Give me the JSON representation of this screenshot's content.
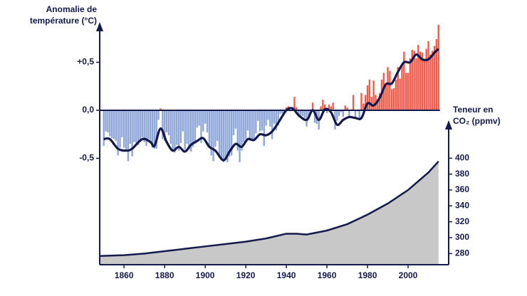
{
  "chart_data": {
    "type": "bar",
    "ylabel": [
      "Anomalie de",
      "température (°C)"
    ],
    "y2label": [
      "Teneur en",
      "CO₂ (ppmv)"
    ],
    "x": [
      1850,
      1851,
      1852,
      1853,
      1854,
      1855,
      1856,
      1857,
      1858,
      1859,
      1860,
      1861,
      1862,
      1863,
      1864,
      1865,
      1866,
      1867,
      1868,
      1869,
      1870,
      1871,
      1872,
      1873,
      1874,
      1875,
      1876,
      1877,
      1878,
      1879,
      1880,
      1881,
      1882,
      1883,
      1884,
      1885,
      1886,
      1887,
      1888,
      1889,
      1890,
      1891,
      1892,
      1893,
      1894,
      1895,
      1896,
      1897,
      1898,
      1899,
      1900,
      1901,
      1902,
      1903,
      1904,
      1905,
      1906,
      1907,
      1908,
      1909,
      1910,
      1911,
      1912,
      1913,
      1914,
      1915,
      1916,
      1917,
      1918,
      1919,
      1920,
      1921,
      1922,
      1923,
      1924,
      1925,
      1926,
      1927,
      1928,
      1929,
      1930,
      1931,
      1932,
      1933,
      1934,
      1935,
      1936,
      1937,
      1938,
      1939,
      1940,
      1941,
      1942,
      1943,
      1944,
      1945,
      1946,
      1947,
      1948,
      1949,
      1950,
      1951,
      1952,
      1953,
      1954,
      1955,
      1956,
      1957,
      1958,
      1959,
      1960,
      1961,
      1962,
      1963,
      1964,
      1965,
      1966,
      1967,
      1968,
      1969,
      1970,
      1971,
      1972,
      1973,
      1974,
      1975,
      1976,
      1977,
      1978,
      1979,
      1980,
      1981,
      1982,
      1983,
      1984,
      1985,
      1986,
      1987,
      1988,
      1989,
      1990,
      1991,
      1992,
      1993,
      1994,
      1995,
      1996,
      1997,
      1998,
      1999,
      2000,
      2001,
      2002,
      2003,
      2004,
      2005,
      2006,
      2007,
      2008,
      2009,
      2010,
      2011,
      2012,
      2013,
      2014,
      2015
    ],
    "values": [
      -0.37,
      -0.22,
      -0.23,
      -0.27,
      -0.29,
      -0.3,
      -0.32,
      -0.47,
      -0.39,
      -0.28,
      -0.39,
      -0.43,
      -0.53,
      -0.35,
      -0.48,
      -0.33,
      -0.34,
      -0.36,
      -0.33,
      -0.28,
      -0.33,
      -0.37,
      -0.3,
      -0.33,
      -0.39,
      -0.4,
      -0.4,
      -0.1,
      0.02,
      -0.3,
      -0.32,
      -0.23,
      -0.26,
      -0.35,
      -0.43,
      -0.44,
      -0.36,
      -0.42,
      -0.34,
      -0.22,
      -0.41,
      -0.35,
      -0.41,
      -0.43,
      -0.38,
      -0.35,
      -0.18,
      -0.16,
      -0.34,
      -0.22,
      -0.14,
      -0.23,
      -0.37,
      -0.47,
      -0.53,
      -0.38,
      -0.32,
      -0.49,
      -0.51,
      -0.54,
      -0.51,
      -0.54,
      -0.48,
      -0.47,
      -0.26,
      -0.19,
      -0.42,
      -0.54,
      -0.42,
      -0.33,
      -0.3,
      -0.21,
      -0.32,
      -0.3,
      -0.32,
      -0.24,
      -0.11,
      -0.22,
      -0.21,
      -0.37,
      -0.16,
      -0.1,
      -0.17,
      -0.3,
      -0.14,
      -0.21,
      -0.16,
      -0.04,
      -0.03,
      -0.03,
      0.03,
      0.04,
      -0.01,
      0.0,
      0.14,
      0.03,
      -0.07,
      -0.05,
      -0.06,
      -0.08,
      -0.17,
      -0.07,
      0.01,
      0.08,
      -0.13,
      -0.14,
      -0.2,
      0.04,
      0.11,
      0.06,
      -0.03,
      0.06,
      0.04,
      0.08,
      -0.2,
      -0.11,
      -0.06,
      -0.02,
      -0.07,
      0.05,
      0.03,
      -0.08,
      0.01,
      0.16,
      -0.07,
      -0.01,
      -0.1,
      0.18,
      0.07,
      0.16,
      0.26,
      0.32,
      0.14,
      0.31,
      0.16,
      0.12,
      0.18,
      0.32,
      0.39,
      0.27,
      0.45,
      0.41,
      0.22,
      0.23,
      0.32,
      0.45,
      0.33,
      0.47,
      0.61,
      0.39,
      0.39,
      0.54,
      0.63,
      0.62,
      0.54,
      0.68,
      0.61,
      0.6,
      0.52,
      0.64,
      0.72,
      0.58,
      0.62,
      0.67,
      0.74,
      0.89
    ],
    "positive_color": "#f25c4c",
    "negative_color": "#8ea7d8",
    "line": {
      "type": "line",
      "color": "#141a4b",
      "x": [
        1850,
        1853,
        1857,
        1861,
        1864,
        1869,
        1873,
        1875,
        1878,
        1881,
        1884,
        1887,
        1890,
        1893,
        1896,
        1899,
        1902,
        1905,
        1909,
        1912,
        1915,
        1918,
        1921,
        1924,
        1927,
        1930,
        1933,
        1936,
        1940,
        1943,
        1946,
        1950,
        1953,
        1956,
        1959,
        1962,
        1965,
        1968,
        1971,
        1974,
        1977,
        1980,
        1983,
        1986,
        1989,
        1992,
        1995,
        1998,
        2001,
        2004,
        2007,
        2010,
        2013,
        2015
      ],
      "values": [
        -0.3,
        -0.3,
        -0.4,
        -0.42,
        -0.4,
        -0.3,
        -0.33,
        -0.37,
        -0.19,
        -0.33,
        -0.42,
        -0.38,
        -0.43,
        -0.36,
        -0.32,
        -0.29,
        -0.38,
        -0.42,
        -0.52,
        -0.43,
        -0.35,
        -0.38,
        -0.3,
        -0.31,
        -0.25,
        -0.26,
        -0.22,
        -0.13,
        0.0,
        0.02,
        -0.05,
        -0.1,
        0.0,
        -0.1,
        0.01,
        -0.02,
        -0.15,
        -0.1,
        -0.07,
        -0.08,
        -0.08,
        0.07,
        0.05,
        0.13,
        0.27,
        0.28,
        0.4,
        0.5,
        0.5,
        0.58,
        0.53,
        0.53,
        0.6,
        0.64
      ]
    },
    "co2": {
      "type": "area",
      "axis": "y2",
      "color": "#c8c8c8",
      "edge_color": "#141a4b",
      "x": [
        1848,
        1860,
        1870,
        1880,
        1890,
        1900,
        1910,
        1920,
        1930,
        1940,
        1945,
        1950,
        1960,
        1970,
        1980,
        1990,
        2000,
        2010,
        2015
      ],
      "values": [
        277,
        278,
        280,
        283,
        286,
        289,
        292,
        295,
        299,
        305,
        305,
        304,
        309,
        317,
        329,
        343,
        360,
        382,
        396
      ]
    },
    "xlim": [
      1848,
      2020
    ],
    "xticks": [
      1860,
      1880,
      1900,
      1920,
      1940,
      1960,
      1980,
      2000
    ],
    "ylim": [
      -0.7,
      0.9
    ],
    "yticks": [
      {
        "value": -0.5,
        "label": "-0,5"
      },
      {
        "value": 0,
        "label": "0,0"
      },
      {
        "value": 0.5,
        "label": "+0,5"
      }
    ],
    "y2lim": [
      266,
      446
    ],
    "y2ticks": [
      280,
      300,
      320,
      340,
      360,
      380,
      400
    ]
  }
}
